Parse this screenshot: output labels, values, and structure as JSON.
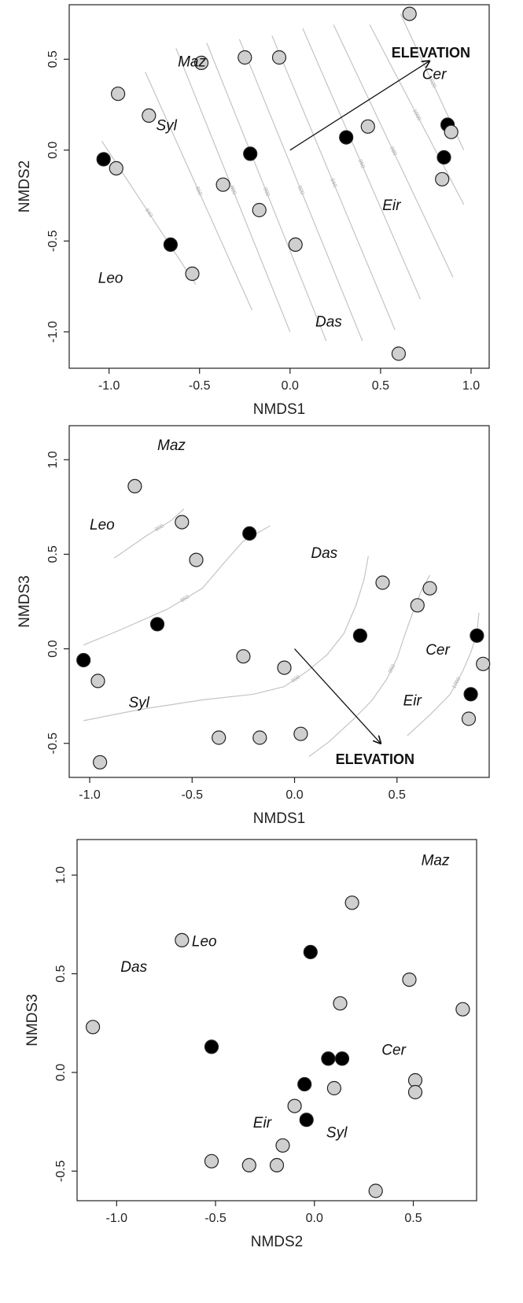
{
  "colors": {
    "gray_point": "#cfcfcf",
    "black_point": "#000000",
    "contour": "#c4c4c4",
    "frame": "#222222"
  },
  "chart_data": [
    {
      "type": "scatter",
      "xlabel": "NMDS1",
      "ylabel": "NMDS2",
      "xlim": [
        -1.22,
        1.1
      ],
      "ylim": [
        -1.2,
        0.8
      ],
      "xticks": [
        -1.0,
        -0.5,
        0.0,
        0.5,
        1.0
      ],
      "yticks": [
        -1.0,
        -0.5,
        0.0,
        0.5
      ],
      "grid": false,
      "points": [
        {
          "x": 0.66,
          "y": 0.75,
          "fill": "gray"
        },
        {
          "x": -0.49,
          "y": 0.48,
          "fill": "gray"
        },
        {
          "x": -0.25,
          "y": 0.51,
          "fill": "gray"
        },
        {
          "x": -0.06,
          "y": 0.51,
          "fill": "gray"
        },
        {
          "x": -0.95,
          "y": 0.31,
          "fill": "gray"
        },
        {
          "x": -0.78,
          "y": 0.19,
          "fill": "gray"
        },
        {
          "x": 0.43,
          "y": 0.13,
          "fill": "gray"
        },
        {
          "x": 0.87,
          "y": 0.14,
          "fill": "black"
        },
        {
          "x": 0.89,
          "y": 0.1,
          "fill": "gray"
        },
        {
          "x": 0.31,
          "y": 0.07,
          "fill": "black"
        },
        {
          "x": -1.03,
          "y": -0.05,
          "fill": "black"
        },
        {
          "x": -0.96,
          "y": -0.1,
          "fill": "gray"
        },
        {
          "x": -0.22,
          "y": -0.02,
          "fill": "black"
        },
        {
          "x": 0.85,
          "y": -0.04,
          "fill": "black"
        },
        {
          "x": 0.84,
          "y": -0.16,
          "fill": "gray"
        },
        {
          "x": -0.37,
          "y": -0.19,
          "fill": "gray"
        },
        {
          "x": -0.17,
          "y": -0.33,
          "fill": "gray"
        },
        {
          "x": 0.03,
          "y": -0.52,
          "fill": "gray"
        },
        {
          "x": -0.66,
          "y": -0.52,
          "fill": "black"
        },
        {
          "x": -0.54,
          "y": -0.68,
          "fill": "gray"
        },
        {
          "x": 0.6,
          "y": -1.12,
          "fill": "gray"
        }
      ],
      "groups": [
        {
          "text": "Maz",
          "x": -0.62,
          "y": 0.46
        },
        {
          "text": "Syl",
          "x": -0.74,
          "y": 0.11
        },
        {
          "text": "Leo",
          "x": -1.06,
          "y": -0.73
        },
        {
          "text": "Das",
          "x": 0.14,
          "y": -0.97
        },
        {
          "text": "Cer",
          "x": 0.73,
          "y": 0.39
        },
        {
          "text": "Eir",
          "x": 0.51,
          "y": -0.33
        }
      ],
      "vector": {
        "label": "ELEVATION",
        "x": 0.77,
        "y": 0.49
      },
      "vector_label_pos": {
        "x": 0.56,
        "y": 0.51
      },
      "contours": [
        {
          "from": [
            -1.04,
            0.05
          ],
          "to": [
            -0.52,
            -0.74
          ],
          "level": "840"
        },
        {
          "from": [
            -0.8,
            0.43
          ],
          "to": [
            -0.21,
            -0.88
          ],
          "level": "860"
        },
        {
          "from": [
            -0.63,
            0.56
          ],
          "to": [
            0.0,
            -1.0
          ],
          "level": "880"
        },
        {
          "from": [
            -0.46,
            0.59
          ],
          "to": [
            0.2,
            -1.05
          ],
          "level": "900"
        },
        {
          "from": [
            -0.28,
            0.61
          ],
          "to": [
            0.4,
            -1.05
          ],
          "level": "920"
        },
        {
          "from": [
            -0.1,
            0.63
          ],
          "to": [
            0.58,
            -0.99
          ],
          "level": "940"
        },
        {
          "from": [
            0.07,
            0.67
          ],
          "to": [
            0.72,
            -0.82
          ],
          "level": "960"
        },
        {
          "from": [
            0.24,
            0.69
          ],
          "to": [
            0.9,
            -0.7
          ],
          "level": "980"
        },
        {
          "from": [
            0.44,
            0.69
          ],
          "to": [
            0.96,
            -0.3
          ],
          "level": "1000"
        },
        {
          "from": [
            0.61,
            0.75
          ],
          "to": [
            0.96,
            0.0
          ],
          "level": "1020"
        }
      ]
    },
    {
      "type": "scatter",
      "xlabel": "NMDS1",
      "ylabel": "NMDS3",
      "xlim": [
        -1.1,
        0.95
      ],
      "ylim": [
        -0.68,
        1.18
      ],
      "xticks": [
        -1.0,
        -0.5,
        0.0,
        0.5
      ],
      "yticks": [
        -0.5,
        0.0,
        0.5,
        1.0
      ],
      "grid": false,
      "points": [
        {
          "x": -0.78,
          "y": 0.86,
          "fill": "gray"
        },
        {
          "x": -0.55,
          "y": 0.67,
          "fill": "gray"
        },
        {
          "x": -0.22,
          "y": 0.61,
          "fill": "black"
        },
        {
          "x": -0.48,
          "y": 0.47,
          "fill": "gray"
        },
        {
          "x": 0.43,
          "y": 0.35,
          "fill": "gray"
        },
        {
          "x": 0.66,
          "y": 0.32,
          "fill": "gray"
        },
        {
          "x": 0.6,
          "y": 0.23,
          "fill": "gray"
        },
        {
          "x": -0.67,
          "y": 0.13,
          "fill": "black"
        },
        {
          "x": 0.32,
          "y": 0.07,
          "fill": "black"
        },
        {
          "x": 0.89,
          "y": 0.07,
          "fill": "black"
        },
        {
          "x": -0.25,
          "y": -0.04,
          "fill": "gray"
        },
        {
          "x": -1.03,
          "y": -0.06,
          "fill": "black"
        },
        {
          "x": 0.92,
          "y": -0.08,
          "fill": "gray"
        },
        {
          "x": -0.05,
          "y": -0.1,
          "fill": "gray"
        },
        {
          "x": -0.96,
          "y": -0.17,
          "fill": "gray"
        },
        {
          "x": 0.86,
          "y": -0.24,
          "fill": "black"
        },
        {
          "x": 0.85,
          "y": -0.37,
          "fill": "gray"
        },
        {
          "x": 0.03,
          "y": -0.45,
          "fill": "gray"
        },
        {
          "x": -0.37,
          "y": -0.47,
          "fill": "gray"
        },
        {
          "x": -0.17,
          "y": -0.47,
          "fill": "gray"
        },
        {
          "x": -0.95,
          "y": -0.6,
          "fill": "gray"
        }
      ],
      "groups": [
        {
          "text": "Maz",
          "x": -0.67,
          "y": 1.05
        },
        {
          "text": "Leo",
          "x": -1.0,
          "y": 0.63
        },
        {
          "text": "Das",
          "x": 0.08,
          "y": 0.48
        },
        {
          "text": "Syl",
          "x": -0.81,
          "y": -0.31
        },
        {
          "text": "Cer",
          "x": 0.64,
          "y": -0.03
        },
        {
          "text": "Eir",
          "x": 0.53,
          "y": -0.3
        }
      ],
      "vector": {
        "label": "ELEVATION",
        "x": 0.42,
        "y": -0.5
      },
      "vector_label_pos": {
        "x": 0.2,
        "y": -0.61
      },
      "contours": [
        {
          "points": [
            [
              -0.88,
              0.48
            ],
            [
              -0.72,
              0.6
            ],
            [
              -0.6,
              0.68
            ],
            [
              -0.54,
              0.74
            ]
          ],
          "level": "800"
        },
        {
          "points": [
            [
              -1.03,
              0.02
            ],
            [
              -0.85,
              0.1
            ],
            [
              -0.62,
              0.21
            ],
            [
              -0.45,
              0.32
            ],
            [
              -0.34,
              0.46
            ],
            [
              -0.25,
              0.57
            ],
            [
              -0.12,
              0.65
            ]
          ],
          "level": "850"
        },
        {
          "points": [
            [
              -1.03,
              -0.38
            ],
            [
              -0.75,
              -0.32
            ],
            [
              -0.45,
              -0.27
            ],
            [
              -0.2,
              -0.24
            ],
            [
              -0.05,
              -0.2
            ],
            [
              0.06,
              -0.12
            ],
            [
              0.16,
              -0.03
            ],
            [
              0.24,
              0.08
            ],
            [
              0.3,
              0.23
            ],
            [
              0.34,
              0.37
            ],
            [
              0.36,
              0.49
            ]
          ],
          "level": "900"
        },
        {
          "points": [
            [
              0.07,
              -0.57
            ],
            [
              0.17,
              -0.49
            ],
            [
              0.29,
              -0.37
            ],
            [
              0.38,
              -0.27
            ],
            [
              0.45,
              -0.16
            ],
            [
              0.5,
              -0.05
            ],
            [
              0.54,
              0.08
            ],
            [
              0.58,
              0.2
            ],
            [
              0.62,
              0.31
            ],
            [
              0.66,
              0.39
            ]
          ],
          "level": "950"
        },
        {
          "points": [
            [
              0.55,
              -0.46
            ],
            [
              0.66,
              -0.35
            ],
            [
              0.76,
              -0.24
            ],
            [
              0.82,
              -0.12
            ],
            [
              0.86,
              -0.02
            ],
            [
              0.89,
              0.08
            ],
            [
              0.9,
              0.19
            ]
          ],
          "level": "1000"
        }
      ]
    },
    {
      "type": "scatter",
      "xlabel": "NMDS2",
      "ylabel": "NMDS3",
      "xlim": [
        -1.2,
        0.82
      ],
      "ylim": [
        -0.65,
        1.18
      ],
      "xticks": [
        -1.0,
        -0.5,
        0.0,
        0.5
      ],
      "yticks": [
        -0.5,
        0.0,
        0.5,
        1.0
      ],
      "grid": false,
      "points": [
        {
          "x": 0.19,
          "y": 0.86,
          "fill": "gray"
        },
        {
          "x": -0.67,
          "y": 0.67,
          "fill": "gray"
        },
        {
          "x": -0.02,
          "y": 0.61,
          "fill": "black"
        },
        {
          "x": 0.48,
          "y": 0.47,
          "fill": "gray"
        },
        {
          "x": 0.13,
          "y": 0.35,
          "fill": "gray"
        },
        {
          "x": 0.75,
          "y": 0.32,
          "fill": "gray"
        },
        {
          "x": -1.12,
          "y": 0.23,
          "fill": "gray"
        },
        {
          "x": -0.52,
          "y": 0.13,
          "fill": "black"
        },
        {
          "x": 0.07,
          "y": 0.07,
          "fill": "black"
        },
        {
          "x": 0.14,
          "y": 0.07,
          "fill": "black"
        },
        {
          "x": 0.51,
          "y": -0.04,
          "fill": "gray"
        },
        {
          "x": -0.05,
          "y": -0.06,
          "fill": "black"
        },
        {
          "x": 0.1,
          "y": -0.08,
          "fill": "gray"
        },
        {
          "x": 0.51,
          "y": -0.1,
          "fill": "gray"
        },
        {
          "x": -0.1,
          "y": -0.17,
          "fill": "gray"
        },
        {
          "x": -0.04,
          "y": -0.24,
          "fill": "black"
        },
        {
          "x": -0.16,
          "y": -0.37,
          "fill": "gray"
        },
        {
          "x": -0.52,
          "y": -0.45,
          "fill": "gray"
        },
        {
          "x": -0.33,
          "y": -0.47,
          "fill": "gray"
        },
        {
          "x": -0.19,
          "y": -0.47,
          "fill": "gray"
        },
        {
          "x": 0.31,
          "y": -0.6,
          "fill": "gray"
        }
      ],
      "groups": [
        {
          "text": "Maz",
          "x": 0.54,
          "y": 1.05
        },
        {
          "text": "Leo",
          "x": -0.62,
          "y": 0.64
        },
        {
          "text": "Das",
          "x": -0.98,
          "y": 0.51
        },
        {
          "text": "Cer",
          "x": 0.34,
          "y": 0.09
        },
        {
          "text": "Eir",
          "x": -0.31,
          "y": -0.28
        },
        {
          "text": "Syl",
          "x": 0.06,
          "y": -0.33
        }
      ],
      "contours": []
    }
  ]
}
